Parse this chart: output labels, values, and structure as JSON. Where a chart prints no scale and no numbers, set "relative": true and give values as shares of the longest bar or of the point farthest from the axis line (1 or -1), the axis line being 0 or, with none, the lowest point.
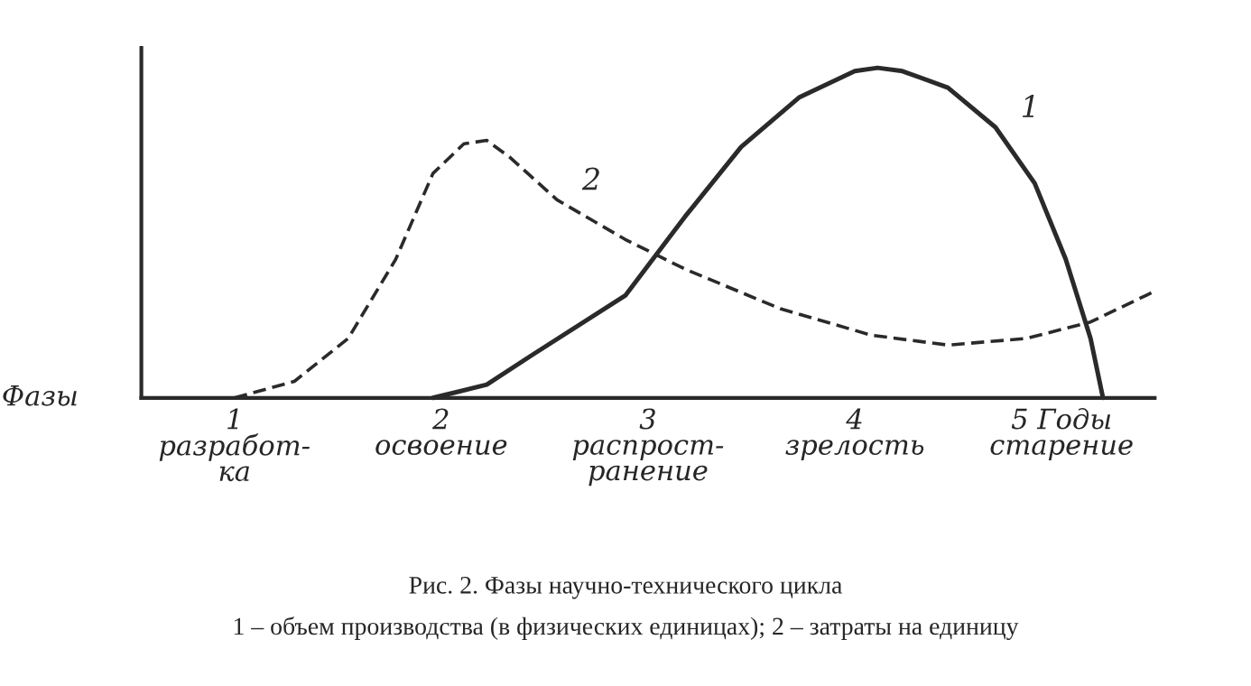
{
  "chart_data": {
    "type": "line",
    "relative": true,
    "title": "Рис. 2. Фазы научно-технического цикла",
    "annotations": [
      "1 – объем производства (в физических единицах); 2 – затраты на единицу"
    ],
    "xlabel": "Фазы",
    "xlim": [
      0.55,
      5.45
    ],
    "xticks": [
      {
        "value": 1,
        "label": "1\nразработ-\nка"
      },
      {
        "value": 2,
        "label": "2\nосвоение"
      },
      {
        "value": 3,
        "label": "3\nраспрост-\nранение"
      },
      {
        "value": 4,
        "label": "4\nзрелость"
      },
      {
        "value": 5,
        "label": "5 Годы\nстарение"
      }
    ],
    "grid": false,
    "legend": false,
    "series": [
      {
        "name": "1",
        "color": "#2a2a2a",
        "line_style": "solid",
        "x": [
          1.96,
          2.22,
          2.44,
          2.89,
          3.18,
          3.45,
          3.73,
          4.0,
          4.11,
          4.23,
          4.45,
          4.68,
          4.87,
          5.02,
          5.14,
          5.2
        ],
        "values": [
          0,
          0.04,
          0.13,
          0.31,
          0.55,
          0.76,
          0.91,
          0.99,
          1.0,
          0.99,
          0.94,
          0.82,
          0.65,
          0.42,
          0.18,
          0
        ]
      },
      {
        "name": "2",
        "color": "#2a2a2a",
        "line_style": "dashed",
        "x": [
          1.0,
          1.29,
          1.55,
          1.78,
          1.96,
          2.11,
          2.22,
          2.33,
          2.56,
          2.89,
          3.18,
          3.64,
          4.08,
          4.45,
          4.83,
          5.14,
          5.44
        ],
        "values": [
          0,
          0.05,
          0.18,
          0.42,
          0.68,
          0.77,
          0.78,
          0.73,
          0.6,
          0.48,
          0.39,
          0.27,
          0.19,
          0.16,
          0.18,
          0.23,
          0.32
        ]
      }
    ]
  }
}
